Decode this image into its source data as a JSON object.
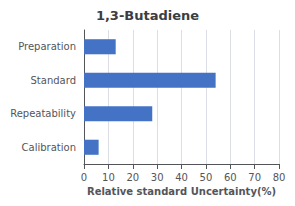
{
  "chart_data": {
    "type": "bar",
    "orientation": "horizontal",
    "title": "1,3-Butadiene",
    "categories": [
      "Preparation",
      "Standard",
      "Repeatability",
      "Calibration"
    ],
    "values": [
      13,
      54,
      28,
      6
    ],
    "color": "#4472C4",
    "xlabel": "Relative standard Uncertainty(%)",
    "xlim": [
      0,
      80
    ],
    "xticks": [
      0,
      10,
      20,
      30,
      40,
      50,
      60,
      70,
      80
    ],
    "grid": true
  }
}
